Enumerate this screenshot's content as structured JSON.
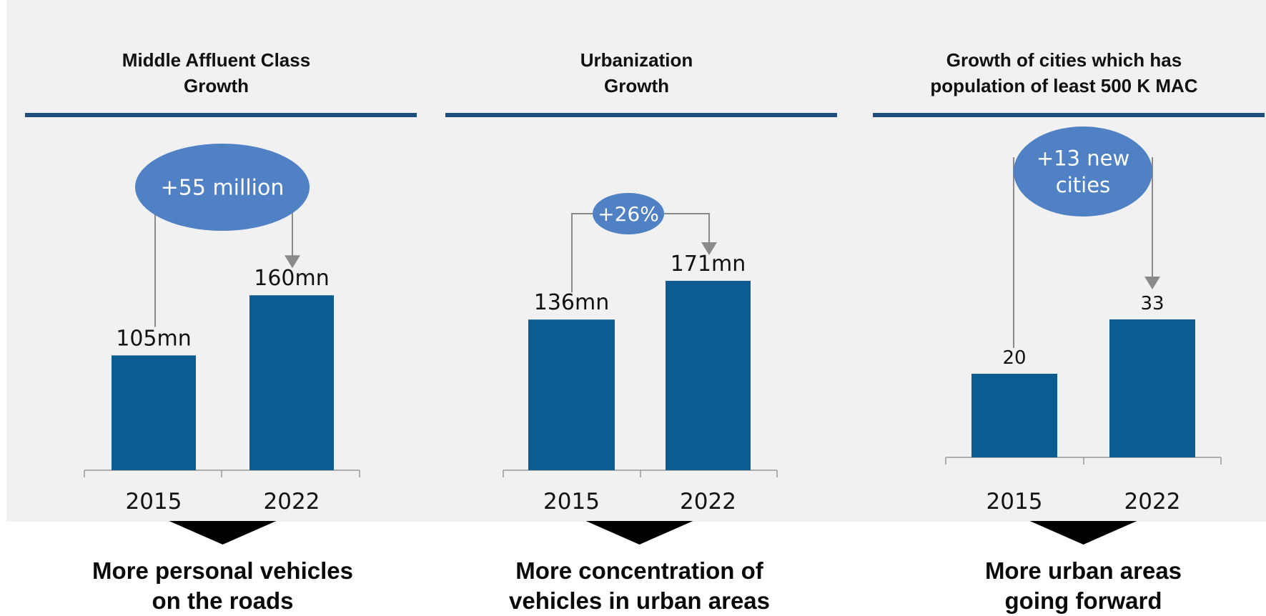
{
  "colors": {
    "bar": "#0d5c91",
    "rule": "#1f4e7d",
    "bubble": "#4f81c4",
    "bubble_text": "#ffffff",
    "arrow": "#8a8a8a",
    "axis": "#999999",
    "pointer": "#000000"
  },
  "chart_data": [
    {
      "type": "bar",
      "title": "Middle Affluent Class\nGrowth",
      "categories": [
        "2015",
        "2022"
      ],
      "values": [
        105,
        160
      ],
      "data_labels": [
        "105mn",
        "160mn"
      ],
      "change_label": "+55 million",
      "caption": "More personal vehicles\non the roads",
      "grid": false
    },
    {
      "type": "bar",
      "title": "Urbanization\nGrowth",
      "categories": [
        "2015",
        "2022"
      ],
      "values": [
        136,
        171
      ],
      "data_labels": [
        "136mn",
        "171mn"
      ],
      "change_label": "+26%",
      "caption": "More concentration of\nvehicles in urban areas",
      "grid": false
    },
    {
      "type": "bar",
      "title": "Growth of cities which has\npopulation of least 500 K MAC",
      "categories": [
        "2015",
        "2022"
      ],
      "values": [
        20,
        33
      ],
      "data_labels": [
        "20",
        "33"
      ],
      "change_label": "+13 new\ncities",
      "caption": "More urban areas\ngoing forward",
      "grid": false
    }
  ]
}
